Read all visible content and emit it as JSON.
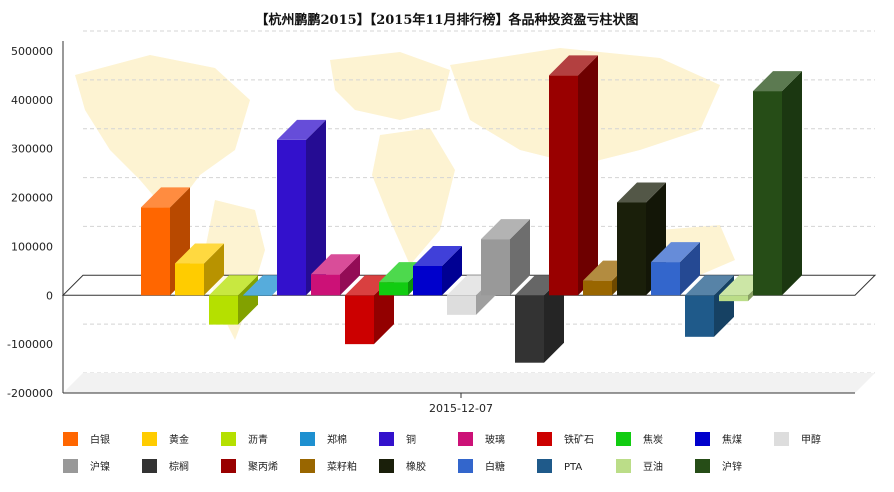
{
  "chart_data": {
    "type": "bar",
    "title": "【杭州鹏鹏2015】【2015年11月排行榜】各品种投资盈亏柱状图",
    "category": "2015-12-07",
    "y_ticks": [
      "500000",
      "400000",
      "300000",
      "200000",
      "100000",
      "0",
      "-100000",
      "-200000"
    ],
    "ylim": [
      -200000,
      500000
    ],
    "grid": true,
    "legend_position": "bottom",
    "series": [
      {
        "name": "白银",
        "value": 180000,
        "color": "#ff6600"
      },
      {
        "name": "黄金",
        "value": 65000,
        "color": "#ffcc00"
      },
      {
        "name": "沥青",
        "value": -60000,
        "color": "#b5e000"
      },
      {
        "name": "郑棉",
        "value": 0,
        "color": "#1e90d0"
      },
      {
        "name": "铜",
        "value": 318000,
        "color": "#3311cc"
      },
      {
        "name": "玻璃",
        "value": 43000,
        "color": "#cc1177"
      },
      {
        "name": "铁矿石",
        "value": -100000,
        "color": "#cc0000"
      },
      {
        "name": "焦炭",
        "value": 27000,
        "color": "#11cc11"
      },
      {
        "name": "焦煤",
        "value": 60000,
        "color": "#0000cc"
      },
      {
        "name": "甲醇",
        "value": -40000,
        "color": "#dddddd"
      },
      {
        "name": "沪镍",
        "value": 115000,
        "color": "#999999"
      },
      {
        "name": "棕榈",
        "value": -138000,
        "color": "#333333"
      },
      {
        "name": "聚丙烯",
        "value": 450000,
        "color": "#990000"
      },
      {
        "name": "菜籽粕",
        "value": 30000,
        "color": "#996600"
      },
      {
        "name": "橡胶",
        "value": 190000,
        "color": "#1a1f0a"
      },
      {
        "name": "白糖",
        "value": 68000,
        "color": "#3366cc"
      },
      {
        "name": "PTA",
        "value": -85000,
        "color": "#1f5a8a"
      },
      {
        "name": "豆油",
        "value": -12000,
        "color": "#bbdd88"
      },
      {
        "name": "沪锌",
        "value": 418000,
        "color": "#264d17"
      }
    ]
  }
}
